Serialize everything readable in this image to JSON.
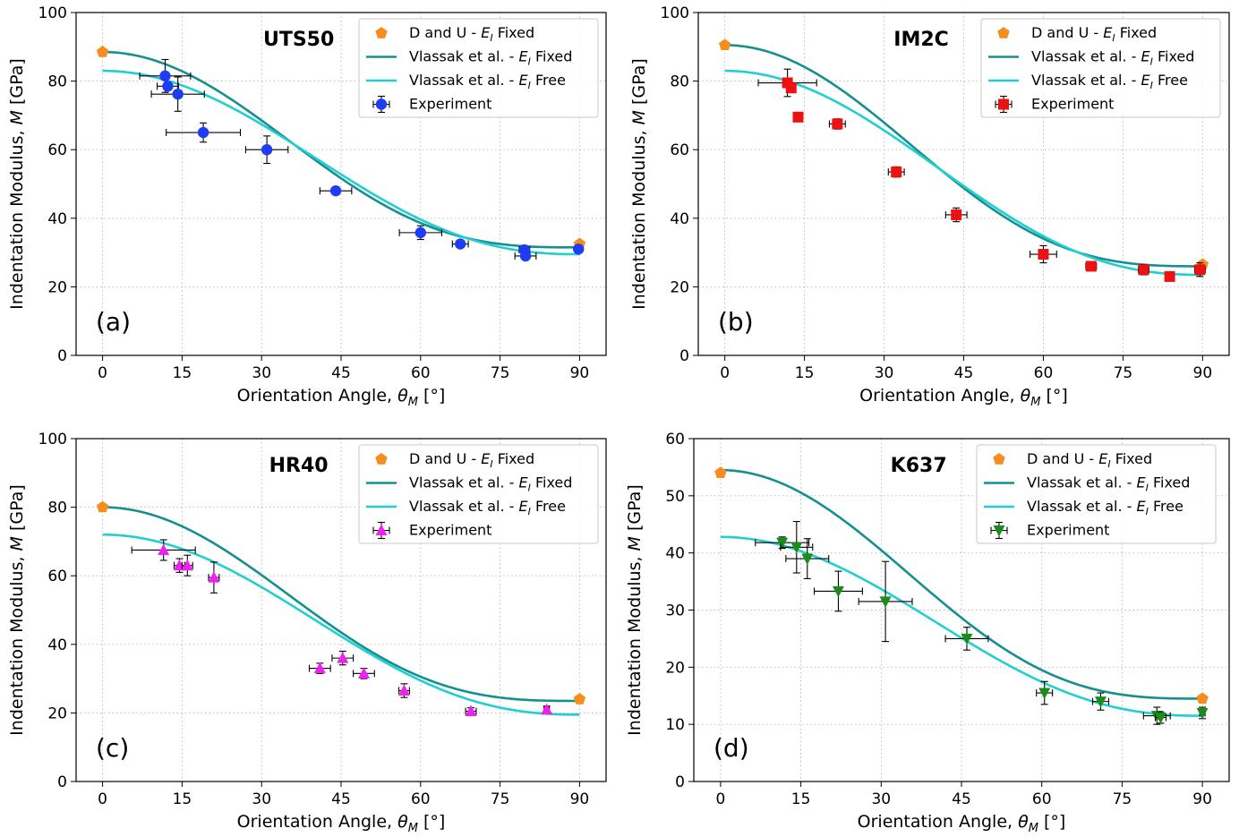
{
  "colors": {
    "du": "#f78c1f",
    "fixed": "#159090",
    "free": "#20cfd2",
    "errbar": "#000000"
  },
  "legend_labels": {
    "du_prefix": "D and U - ",
    "fixed_prefix": "Vlassak et al. - ",
    "free_prefix": "Vlassak et al. - ",
    "E_symbol": "E",
    "E_sub": "I",
    "fixed_suffix": " Fixed",
    "free_suffix": " Free",
    "experiment": "Experiment"
  },
  "axis_labels": {
    "x_prefix": "Orientation Angle, ",
    "x_symbol": "θ",
    "x_sub": "M",
    "x_suffix": " [°]",
    "y_prefix": "Indentation Modulus, ",
    "y_symbol": "M",
    "y_suffix": " [GPa]"
  },
  "chart_data": [
    {
      "type": "scatter",
      "panel": "(a)",
      "title": "UTS50",
      "xlim": [
        -5,
        95
      ],
      "ylim": [
        0,
        100
      ],
      "xticks": [
        0,
        15,
        30,
        45,
        60,
        75,
        90
      ],
      "yticks": [
        0,
        20,
        40,
        60,
        80,
        100
      ],
      "grid": true,
      "legend": "top-right",
      "du_fixed": [
        {
          "x": 0,
          "y": 88.5
        },
        {
          "x": 90,
          "y": 32.5
        }
      ],
      "vlassak_fixed": {
        "M0": 88.5,
        "M90": 31.5,
        "p": 1.5
      },
      "vlassak_free": {
        "M0": 83,
        "M90": 29.5,
        "p": 1.2
      },
      "experiment": {
        "marker": "circle",
        "color": "#1f3cf5",
        "points": [
          {
            "x": 11.8,
            "y": 81.5,
            "xerr": 4.8,
            "yerr": 4.8
          },
          {
            "x": 12.3,
            "y": 78.5,
            "xerr": 2.0,
            "yerr": 1.0
          },
          {
            "x": 14.2,
            "y": 76.2,
            "xerr": 5.0,
            "yerr": 5.0
          },
          {
            "x": 19.0,
            "y": 65.0,
            "xerr": 7.0,
            "yerr": 2.8
          },
          {
            "x": 31.0,
            "y": 60.0,
            "xerr": 4.0,
            "yerr": 4.0
          },
          {
            "x": 44.0,
            "y": 48.0,
            "xerr": 3.0,
            "yerr": 1.0
          },
          {
            "x": 60.0,
            "y": 35.8,
            "xerr": 4.0,
            "yerr": 2.0
          },
          {
            "x": 67.5,
            "y": 32.5,
            "xerr": 1.5,
            "yerr": 1.0
          },
          {
            "x": 79.6,
            "y": 30.8,
            "xerr": 1.0,
            "yerr": 1.0
          },
          {
            "x": 79.8,
            "y": 29.0,
            "xerr": 2.0,
            "yerr": 1.0
          },
          {
            "x": 89.8,
            "y": 31.0,
            "xerr": 0.5,
            "yerr": 1.0
          }
        ]
      }
    },
    {
      "type": "scatter",
      "panel": "(b)",
      "title": "IM2C",
      "xlim": [
        -5,
        95
      ],
      "ylim": [
        0,
        100
      ],
      "xticks": [
        0,
        15,
        30,
        45,
        60,
        75,
        90
      ],
      "yticks": [
        0,
        20,
        40,
        60,
        80,
        100
      ],
      "grid": true,
      "legend": "top-right",
      "du_fixed": [
        {
          "x": 0,
          "y": 90.5
        },
        {
          "x": 90,
          "y": 26.5
        }
      ],
      "vlassak_fixed": {
        "M0": 90.5,
        "M90": 26,
        "p": 1.5
      },
      "vlassak_free": {
        "M0": 83,
        "M90": 23.5,
        "p": 1.2
      },
      "experiment": {
        "marker": "square",
        "color": "#ee1111",
        "points": [
          {
            "x": 11.8,
            "y": 79.5,
            "xerr": 5.5,
            "yerr": 4.0
          },
          {
            "x": 12.5,
            "y": 78.0,
            "xerr": 0.8,
            "yerr": 1.0
          },
          {
            "x": 13.8,
            "y": 69.5,
            "xerr": 0.8,
            "yerr": 1.0
          },
          {
            "x": 21.2,
            "y": 67.5,
            "xerr": 1.5,
            "yerr": 1.5
          },
          {
            "x": 32.3,
            "y": 53.5,
            "xerr": 1.5,
            "yerr": 1.5
          },
          {
            "x": 43.6,
            "y": 41.0,
            "xerr": 2.0,
            "yerr": 2.0
          },
          {
            "x": 60.0,
            "y": 29.5,
            "xerr": 2.5,
            "yerr": 2.5
          },
          {
            "x": 69.0,
            "y": 26.0,
            "xerr": 1.0,
            "yerr": 1.0
          },
          {
            "x": 78.9,
            "y": 25.0,
            "xerr": 1.0,
            "yerr": 1.5
          },
          {
            "x": 83.8,
            "y": 23.0,
            "xerr": 0.5,
            "yerr": 0.5
          },
          {
            "x": 89.5,
            "y": 25.0,
            "xerr": 1.0,
            "yerr": 2.0
          }
        ]
      }
    },
    {
      "type": "scatter",
      "panel": "(c)",
      "title": "HR40",
      "xlim": [
        -5,
        95
      ],
      "ylim": [
        0,
        100
      ],
      "xticks": [
        0,
        15,
        30,
        45,
        60,
        75,
        90
      ],
      "yticks": [
        0,
        20,
        40,
        60,
        80,
        100
      ],
      "grid": true,
      "legend": "top-right",
      "du_fixed": [
        {
          "x": 0,
          "y": 80
        },
        {
          "x": 90,
          "y": 24
        }
      ],
      "vlassak_fixed": {
        "M0": 80,
        "M90": 23.5,
        "p": 1.5
      },
      "vlassak_free": {
        "M0": 72,
        "M90": 19.5,
        "p": 1.2
      },
      "experiment": {
        "marker": "triangle-up",
        "color": "#ee22ee",
        "points": [
          {
            "x": 11.5,
            "y": 67.5,
            "xerr": 6.0,
            "yerr": 3.0
          },
          {
            "x": 14.5,
            "y": 63.0,
            "xerr": 1.0,
            "yerr": 2.0
          },
          {
            "x": 16.0,
            "y": 63.0,
            "xerr": 1.0,
            "yerr": 3.0
          },
          {
            "x": 21.0,
            "y": 59.5,
            "xerr": 1.0,
            "yerr": 4.5
          },
          {
            "x": 41.0,
            "y": 33.0,
            "xerr": 2.0,
            "yerr": 1.5
          },
          {
            "x": 45.3,
            "y": 36.0,
            "xerr": 2.0,
            "yerr": 2.0
          },
          {
            "x": 49.3,
            "y": 31.5,
            "xerr": 2.0,
            "yerr": 1.5
          },
          {
            "x": 56.9,
            "y": 26.5,
            "xerr": 1.0,
            "yerr": 2.0
          },
          {
            "x": 69.5,
            "y": 20.5,
            "xerr": 1.0,
            "yerr": 1.0
          },
          {
            "x": 83.8,
            "y": 21.0,
            "xerr": 0.5,
            "yerr": 1.0
          }
        ]
      }
    },
    {
      "type": "scatter",
      "panel": "(d)",
      "title": "K637",
      "xlim": [
        -5,
        95
      ],
      "ylim": [
        0,
        60
      ],
      "xticks": [
        0,
        15,
        30,
        45,
        60,
        75,
        90
      ],
      "yticks": [
        0,
        10,
        20,
        30,
        40,
        50,
        60
      ],
      "grid": true,
      "legend": "top-right",
      "du_fixed": [
        {
          "x": 0,
          "y": 54
        },
        {
          "x": 90,
          "y": 14.5
        }
      ],
      "vlassak_fixed": {
        "M0": 54.5,
        "M90": 14.5,
        "p": 1.5
      },
      "vlassak_free": {
        "M0": 42.8,
        "M90": 11.5,
        "p": 1.2
      },
      "experiment": {
        "marker": "triangle-down",
        "color": "#1a8c1a",
        "points": [
          {
            "x": 11.5,
            "y": 41.8,
            "xerr": 5.0,
            "yerr": 1.0
          },
          {
            "x": 14.2,
            "y": 41.0,
            "xerr": 3.0,
            "yerr": 4.5
          },
          {
            "x": 16.2,
            "y": 39.0,
            "xerr": 4.0,
            "yerr": 3.5
          },
          {
            "x": 22.0,
            "y": 33.3,
            "xerr": 4.5,
            "yerr": 3.5
          },
          {
            "x": 30.8,
            "y": 31.5,
            "xerr": 5.0,
            "yerr": 7.0
          },
          {
            "x": 46.0,
            "y": 25.0,
            "xerr": 4.0,
            "yerr": 2.0
          },
          {
            "x": 60.5,
            "y": 15.5,
            "xerr": 1.5,
            "yerr": 2.0
          },
          {
            "x": 71.0,
            "y": 14.0,
            "xerr": 1.5,
            "yerr": 1.5
          },
          {
            "x": 81.5,
            "y": 11.5,
            "xerr": 2.5,
            "yerr": 1.5
          },
          {
            "x": 82.2,
            "y": 11.2,
            "xerr": 1.0,
            "yerr": 1.0
          },
          {
            "x": 90.0,
            "y": 12.0,
            "xerr": 0.5,
            "yerr": 1.0
          }
        ]
      }
    }
  ]
}
